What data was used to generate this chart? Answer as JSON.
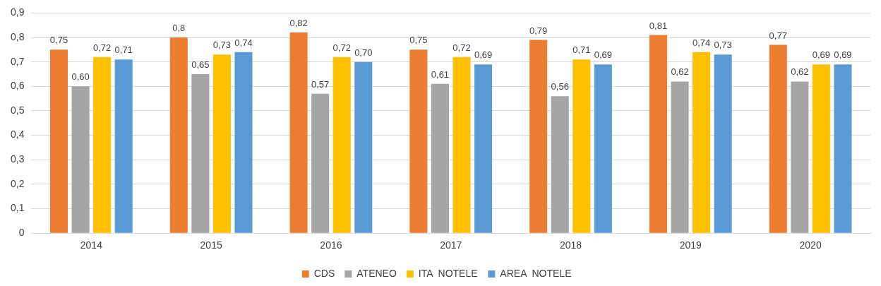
{
  "chart_data": {
    "type": "bar",
    "categories": [
      "2014",
      "2015",
      "2016",
      "2017",
      "2018",
      "2019",
      "2020"
    ],
    "series": [
      {
        "name": "CDS",
        "color": "#ed7d31",
        "values": [
          0.75,
          0.8,
          0.82,
          0.75,
          0.79,
          0.81,
          0.77
        ],
        "value_labels": [
          "0,75",
          "0,8",
          "0,82",
          "0,75",
          "0,79",
          "0,81",
          "0,77"
        ]
      },
      {
        "name": "ATENEO",
        "color": "#a5a5a5",
        "values": [
          0.6,
          0.65,
          0.57,
          0.61,
          0.56,
          0.62,
          0.62
        ],
        "value_labels": [
          "0,60",
          "0,65",
          "0,57",
          "0,61",
          "0,56",
          "0,62",
          "0,62"
        ]
      },
      {
        "name": "ITA  NOTELE",
        "color": "#ffc000",
        "values": [
          0.72,
          0.73,
          0.72,
          0.72,
          0.71,
          0.74,
          0.69
        ],
        "value_labels": [
          "0,72",
          "0,73",
          "0,72",
          "0,72",
          "0,71",
          "0,74",
          "0,69"
        ]
      },
      {
        "name": "AREA  NOTELE",
        "color": "#5b9bd5",
        "values": [
          0.71,
          0.74,
          0.7,
          0.69,
          0.69,
          0.73,
          0.69
        ],
        "value_labels": [
          "0,71",
          "0,74",
          "0,70",
          "0,69",
          "0,69",
          "0,73",
          "0,69"
        ]
      }
    ],
    "ylim": [
      0,
      0.9
    ],
    "yticks": [
      0,
      {
        "value": 0.1,
        "label": "0,1"
      },
      {
        "value": 0.2,
        "label": "0,2"
      },
      {
        "value": 0.3,
        "label": "0,3"
      },
      {
        "value": 0.4,
        "label": "0,4"
      },
      {
        "value": 0.5,
        "label": "0,5"
      },
      {
        "value": 0.6,
        "label": "0,6"
      },
      {
        "value": 0.7,
        "label": "0,7"
      },
      {
        "value": 0.8,
        "label": "0,8"
      },
      {
        "value": 0.9,
        "label": "0,9"
      }
    ],
    "grid": "y",
    "legend": "bottom"
  }
}
